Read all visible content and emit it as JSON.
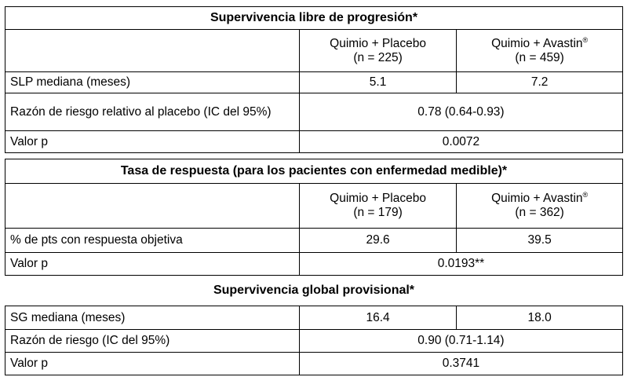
{
  "pfs": {
    "title": "Supervivencia libre de progresión*",
    "col1": {
      "label": "Quimio + Placebo",
      "n": "(n = 225)"
    },
    "col2": {
      "label": "Quimio + Avastin",
      "reg": "®",
      "n": "(n = 459)"
    },
    "rows": [
      {
        "label": "SLP mediana (meses)",
        "v1": "5.1",
        "v2": "7.2"
      },
      {
        "label": "Razón de riesgo relativo al placebo (IC del 95%)",
        "merged": "0.78 (0.64-0.93)"
      },
      {
        "label": "Valor p",
        "merged": "0.0072"
      }
    ]
  },
  "rr": {
    "title": "Tasa de respuesta (para los pacientes con enfermedad medible)*",
    "col1": {
      "label": "Quimio + Placebo",
      "n": "(n = 179)"
    },
    "col2": {
      "label": "Quimio + Avastin",
      "reg": "®",
      "n": "(n = 362)"
    },
    "rows": [
      {
        "label": "% de pts con respuesta objetiva",
        "v1": "29.6",
        "v2": "39.5"
      },
      {
        "label": "Valor p",
        "merged": "0.0193**"
      }
    ]
  },
  "os": {
    "title": "Supervivencia global provisional*",
    "rows": [
      {
        "label": "SG mediana (meses)",
        "v1": "16.4",
        "v2": "18.0"
      },
      {
        "label": "Razón de riesgo (IC del 95%)",
        "merged": "0.90 (0.71-1.14)"
      },
      {
        "label": "Valor p",
        "merged": "0.3741"
      }
    ]
  }
}
